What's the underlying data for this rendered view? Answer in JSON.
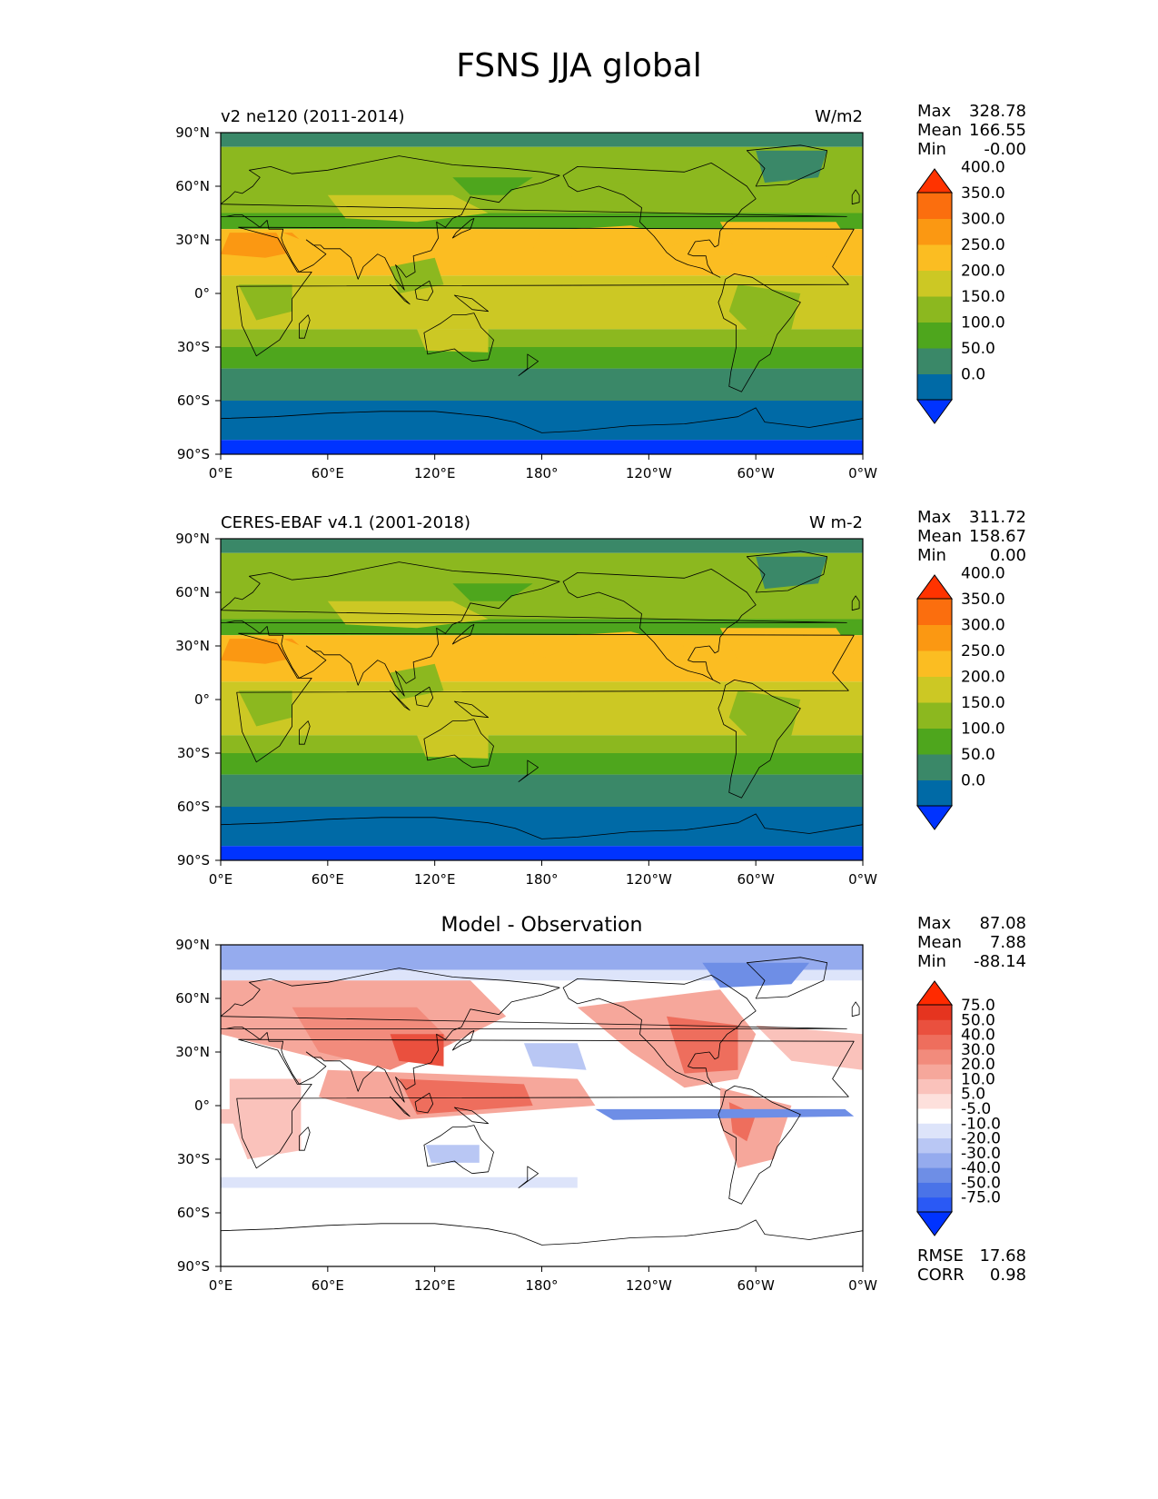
{
  "title": "FSNS JJA global",
  "colors": {
    "c_abs": [
      "#0033ff",
      "#006aa6",
      "#3a8868",
      "#4ea61d",
      "#8cb81f",
      "#ccc824",
      "#fbbd22",
      "#fb9812",
      "#fb6e0e",
      "#ff3300"
    ],
    "c_diff": [
      "#0033ff",
      "#2a59f5",
      "#4a73e8",
      "#6e8ee6",
      "#95abee",
      "#b9c7f4",
      "#dde4fa",
      "#ffffff",
      "#fde0dc",
      "#fac2bb",
      "#f6a79b",
      "#f28b7c",
      "#ee6e5d",
      "#ea503e",
      "#e5341f",
      "#ff2a00"
    ]
  },
  "panels": [
    {
      "left_title": "v2 ne120 (2011-2014)",
      "right_title": "W/m2",
      "center_title": "",
      "stats": {
        "label1": "Max",
        "value1": "328.78",
        "label2": "Mean",
        "value2": "166.55",
        "label3": "Min",
        "value3": "-0.00"
      },
      "colorbar": {
        "palette": "abs",
        "labels": [
          "0.0",
          "50.0",
          "100.0",
          "150.0",
          "200.0",
          "250.0",
          "300.0",
          "350.0",
          "400.0"
        ]
      },
      "map": "abs"
    },
    {
      "left_title": "CERES-EBAF v4.1 (2001-2018)",
      "right_title": "W m-2",
      "center_title": "",
      "stats": {
        "label1": "Max",
        "value1": "311.72",
        "label2": "Mean",
        "value2": "158.67",
        "label3": "Min",
        "value3": "0.00"
      },
      "colorbar": {
        "palette": "abs",
        "labels": [
          "0.0",
          "50.0",
          "100.0",
          "150.0",
          "200.0",
          "250.0",
          "300.0",
          "350.0",
          "400.0"
        ]
      },
      "map": "abs"
    },
    {
      "left_title": "",
      "right_title": "",
      "center_title": "Model - Observation",
      "stats": {
        "label1": "Max",
        "value1": "87.08",
        "label2": "Mean",
        "value2": "7.88",
        "label3": "Min",
        "value3": "-88.14"
      },
      "colorbar": {
        "palette": "diff",
        "labels": [
          "-75.0",
          "-50.0",
          "-40.0",
          "-30.0",
          "-20.0",
          "-10.0",
          "-5.0",
          "5.0",
          "10.0",
          "20.0",
          "30.0",
          "40.0",
          "50.0",
          "75.0"
        ]
      },
      "footer": {
        "label1": "RMSE",
        "value1": "17.68",
        "label2": "CORR",
        "value2": "0.98"
      },
      "map": "diff"
    }
  ],
  "axes": {
    "yticks": [
      "90°N",
      "60°N",
      "30°N",
      "0°",
      "30°S",
      "60°S",
      "90°S"
    ],
    "xticks": [
      "0°E",
      "60°E",
      "120°E",
      "180°",
      "120°W",
      "60°W",
      "0°W"
    ]
  },
  "chart_data": [
    {
      "type": "heatmap",
      "title": "v2 ne120 (2011-2014)",
      "units": "W/m2",
      "xlim": [
        0,
        360
      ],
      "ylim": [
        -90,
        90
      ],
      "levels": [
        0,
        50,
        100,
        150,
        200,
        250,
        300,
        350,
        400
      ],
      "max": 328.78,
      "mean": 166.55,
      "min": -0.0
    },
    {
      "type": "heatmap",
      "title": "CERES-EBAF v4.1 (2001-2018)",
      "units": "W m-2",
      "xlim": [
        0,
        360
      ],
      "ylim": [
        -90,
        90
      ],
      "levels": [
        0,
        50,
        100,
        150,
        200,
        250,
        300,
        350,
        400
      ],
      "max": 311.72,
      "mean": 158.67,
      "min": 0.0
    },
    {
      "type": "heatmap",
      "title": "Model - Observation",
      "xlim": [
        0,
        360
      ],
      "ylim": [
        -90,
        90
      ],
      "levels": [
        -75,
        -50,
        -40,
        -30,
        -20,
        -10,
        -5,
        5,
        10,
        20,
        30,
        40,
        50,
        75
      ],
      "max": 87.08,
      "mean": 7.88,
      "min": -88.14,
      "rmse": 17.68,
      "corr": 0.98
    }
  ]
}
